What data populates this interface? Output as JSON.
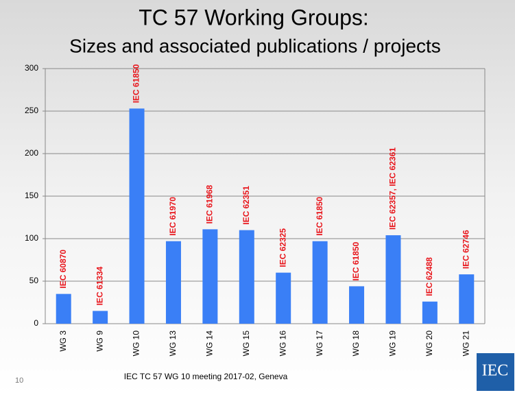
{
  "chart_data": {
    "type": "bar",
    "title": "TC 57 Working Groups:",
    "subtitle": "Sizes and associated publications / projects",
    "categories": [
      "WG 3",
      "WG 9",
      "WG 10",
      "WG 13",
      "WG 14",
      "WG 15",
      "WG 16",
      "WG 17",
      "WG 18",
      "WG 19",
      "WG 20",
      "WG 21"
    ],
    "values": [
      35,
      15,
      253,
      97,
      111,
      110,
      60,
      97,
      44,
      104,
      26,
      58
    ],
    "bar_labels": [
      "IEC 60870",
      "IEC 61334",
      "IEC 61850",
      "IEC 61970",
      "IEC 61968",
      "IEC 62351",
      "IEC 62325",
      "IEC 61850",
      "IEC 61850",
      "IEC 62357, IEC 62361",
      "IEC 62488",
      "IEC 62746"
    ],
    "color": "#3a7ff6",
    "label_color": "#e8151b",
    "ylim": [
      0,
      300
    ],
    "yticks": [
      0,
      50,
      100,
      150,
      200,
      250,
      300
    ],
    "grid": true
  },
  "footer": "IEC TC 57 WG 10 meeting 2017-02, Geneva",
  "page_number": "10",
  "logo": "IEC"
}
